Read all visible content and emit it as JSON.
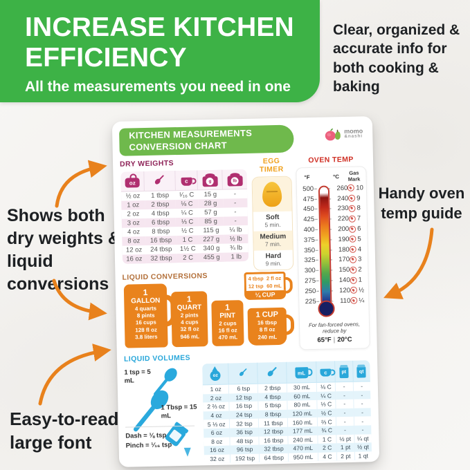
{
  "banner": {
    "title": "INCREASE KITCHEN EFFICIENCY",
    "subtitle": "All the measurements you need in one"
  },
  "annotations": {
    "top_right": "Clear, organized & accurate info for both cooking & baking",
    "left": "Shows both dry weights & liquid conversions",
    "right": "Handy oven temp guide",
    "bottom_left": "Easy-to-read large font"
  },
  "colors": {
    "banner_green": "#3db246",
    "pill_green": "#6fb94c",
    "magenta": "#b02f70",
    "egg_orange": "#f0a21f",
    "oven_red": "#cf2e23",
    "vessel_orange": "#e9831d",
    "volume_blue": "#29a7da",
    "arrow_orange": "#e8811c"
  },
  "chart": {
    "header": {
      "title_line1": "KITCHEN MEASUREMENTS",
      "title_line2": "CONVERSION CHART",
      "brand_top": "momo",
      "brand_bottom": "&nashi"
    },
    "dry_weights": {
      "title": "DRY WEIGHTS",
      "column_labels": [
        "oz",
        "",
        "c",
        "g",
        "lb"
      ],
      "rows": [
        [
          "½ oz",
          "1 tbsp",
          "¹⁄₁₆ C",
          "15 g",
          "-"
        ],
        [
          "1 oz",
          "2 tbsp",
          "⅛ C",
          "28 g",
          "-"
        ],
        [
          "2 oz",
          "4 tbsp",
          "¼ C",
          "57 g",
          "-"
        ],
        [
          "3 oz",
          "6 tbsp",
          "⅓ C",
          "85 g",
          "-"
        ],
        [
          "4 oz",
          "8 tbsp",
          "½ C",
          "115 g",
          "¼ lb"
        ],
        [
          "8 oz",
          "16 tbsp",
          "1 C",
          "227 g",
          "½ lb"
        ],
        [
          "12 oz",
          "24 tbsp",
          "1½ C",
          "340 g",
          "¾ lb"
        ],
        [
          "16 oz",
          "32 tbsp",
          "2 C",
          "455 g",
          "1 lb"
        ]
      ]
    },
    "egg_timer": {
      "title": "EGG TIMER",
      "items": [
        {
          "label": "Soft",
          "time": "5 min."
        },
        {
          "label": "Medium",
          "time": "7 min."
        },
        {
          "label": "Hard",
          "time": "9 min."
        }
      ]
    },
    "oven_temp": {
      "title": "OVEN TEMP",
      "headers": {
        "f": "°F",
        "c": "°C",
        "gas": "Gas Mark"
      },
      "rows": [
        [
          "500",
          "260",
          "10"
        ],
        [
          "475",
          "240",
          "9"
        ],
        [
          "450",
          "230",
          "8"
        ],
        [
          "425",
          "220",
          "7"
        ],
        [
          "400",
          "200",
          "6"
        ],
        [
          "375",
          "190",
          "5"
        ],
        [
          "350",
          "180",
          "4"
        ],
        [
          "325",
          "170",
          "3"
        ],
        [
          "300",
          "150",
          "2"
        ],
        [
          "275",
          "140",
          "1"
        ],
        [
          "250",
          "120",
          "½"
        ],
        [
          "225",
          "110",
          "¼"
        ]
      ],
      "footer_line1": "For fan-forced ovens,",
      "footer_line2": "reduce by",
      "footer_f": "65°F",
      "footer_sep": "|",
      "footer_c": "20°C"
    },
    "liquid_conversions": {
      "title": "LIQUID CONVERSIONS",
      "gallon": {
        "qty": "1",
        "unit": "GALLON",
        "l1": "4 quarts",
        "l2": "8 pints",
        "l3": "16 cups",
        "l4": "128 fl oz",
        "l5": "3.8 liters"
      },
      "quart": {
        "qty": "1",
        "unit": "QUART",
        "l1": "2 pints",
        "l2": "4 cups",
        "l3": "32 fl oz",
        "l4": "946 mL"
      },
      "pint": {
        "qty": "1",
        "unit": "PINT",
        "l1": "2 cups",
        "l2": "16 fl oz",
        "l3": "470 mL"
      },
      "quarter_cup": {
        "label": "¼ CUP",
        "left1": "4 tbsp",
        "left2": "12 tsp",
        "right1": "2 fl oz",
        "right2": "60 mL"
      },
      "cup": {
        "label": "1 CUP",
        "l1": "16 tbsp",
        "l2": "8 fl oz",
        "l3": "240 mL"
      }
    },
    "liquid_volumes": {
      "title": "LIQUID VOLUMES",
      "tsp_note": "1 tsp = 5 mL",
      "tbsp_note": "1 Tbsp = 15 mL",
      "dash_note": "Dash = ⅛ tsp",
      "pinch_note": "Pinch = ¹⁄₁₆ tsp",
      "column_labels": [
        "oz",
        "",
        "",
        "mL",
        "c",
        "pt",
        "qt"
      ],
      "rows": [
        [
          "1 oz",
          "6 tsp",
          "2 tbsp",
          "30 mL",
          "⅛ C",
          "-",
          "-"
        ],
        [
          "2 oz",
          "12 tsp",
          "4 tbsp",
          "60 mL",
          "¼ C",
          "-",
          "-"
        ],
        [
          "2 ⅔ oz",
          "16 tsp",
          "5 tbsp",
          "80 mL",
          "⅓ C",
          "-",
          "-"
        ],
        [
          "4 oz",
          "24 tsp",
          "8 tbsp",
          "120 mL",
          "½ C",
          "-",
          "-"
        ],
        [
          "5 ⅓ oz",
          "32 tsp",
          "11 tbsp",
          "160 mL",
          "⅔ C",
          "-",
          "-"
        ],
        [
          "6 oz",
          "36 tsp",
          "12 tbsp",
          "177 mL",
          "¾ C",
          "-",
          "-"
        ],
        [
          "8 oz",
          "48 tsp",
          "16 tbsp",
          "240 mL",
          "1 C",
          "½ pt",
          "¼ qt"
        ],
        [
          "16 oz",
          "96 tsp",
          "32 tbsp",
          "470 mL",
          "2 C",
          "1 pt",
          "½ qt"
        ],
        [
          "32 oz",
          "192 tsp",
          "64 tbsp",
          "950 mL",
          "4 C",
          "2 pt",
          "1 qt"
        ]
      ]
    }
  }
}
